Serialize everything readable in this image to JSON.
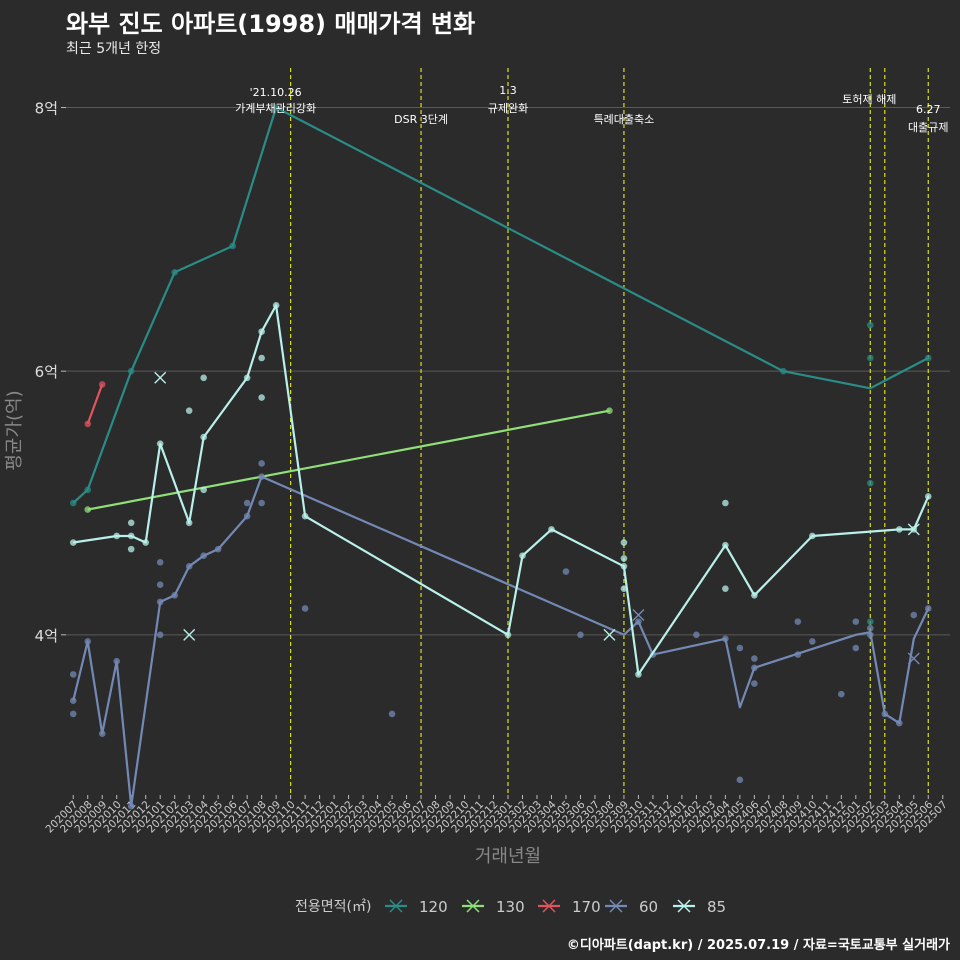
{
  "chart_data": {
    "type": "line",
    "title": "와부 진도 아파트(1998) 매매가격 변화",
    "subtitle": "최근 5개년 한정",
    "xlabel": "거래년월",
    "ylabel": "평균가(억)",
    "caption": "©디아파트(dapt.kr) / 2025.07.19 / 자료=국토교통부 실거래가",
    "legend_title": "전용면적(㎡)",
    "legend_position": "bottom",
    "grid": true,
    "ylim": [
      2.8,
      8.3
    ],
    "y_ticks": [
      4,
      6,
      8
    ],
    "y_tick_labels": [
      "4억",
      "6억",
      "8억"
    ],
    "categories": [
      "202007",
      "202008",
      "202009",
      "202010",
      "202011",
      "202012",
      "202101",
      "202102",
      "202103",
      "202104",
      "202105",
      "202106",
      "202107",
      "202108",
      "202109",
      "202110",
      "202111",
      "202112",
      "202201",
      "202202",
      "202203",
      "202204",
      "202205",
      "202206",
      "202207",
      "202208",
      "202209",
      "202210",
      "202211",
      "202212",
      "202301",
      "202302",
      "202303",
      "202304",
      "202305",
      "202306",
      "202307",
      "202308",
      "202309",
      "202310",
      "202311",
      "202312",
      "202401",
      "202402",
      "202403",
      "202404",
      "202405",
      "202406",
      "202407",
      "202408",
      "202409",
      "202410",
      "202411",
      "202412",
      "202501",
      "202502",
      "202503",
      "202504",
      "202505",
      "202506",
      "202507"
    ],
    "series": [
      {
        "name": "120",
        "color": "#2a8c87",
        "line": [
          [
            "202007",
            5.0
          ],
          [
            "202008",
            5.1
          ],
          [
            "202011",
            6.0
          ],
          [
            "202102",
            6.75
          ],
          [
            "202106",
            6.95
          ],
          [
            "202109",
            8.0
          ],
          [
            "202408",
            6.0
          ],
          [
            "202502",
            5.87
          ],
          [
            "202506",
            6.1
          ]
        ],
        "points": [
          [
            "202007",
            5.0
          ],
          [
            "202008",
            5.1
          ],
          [
            "202011",
            6.0
          ],
          [
            "202102",
            6.75
          ],
          [
            "202106",
            6.95
          ],
          [
            "202109",
            8.0
          ],
          [
            "202408",
            6.0
          ],
          [
            "202502",
            6.35
          ],
          [
            "202502",
            6.1
          ],
          [
            "202502",
            5.15
          ],
          [
            "202502",
            4.1
          ],
          [
            "202506",
            6.1
          ]
        ],
        "x_marks": []
      },
      {
        "name": "130",
        "color": "#90e07a",
        "line": [
          [
            "202008",
            4.95
          ],
          [
            "202308",
            5.7
          ]
        ],
        "points": [
          [
            "202008",
            4.95
          ],
          [
            "202308",
            5.7
          ]
        ],
        "x_marks": []
      },
      {
        "name": "170",
        "color": "#e0545d",
        "line": [
          [
            "202008",
            5.6
          ],
          [
            "202009",
            5.9
          ]
        ],
        "points": [
          [
            "202008",
            5.6
          ],
          [
            "202009",
            5.9
          ]
        ],
        "x_marks": []
      },
      {
        "name": "60",
        "color": "#7389b5",
        "line": [
          [
            "202007",
            3.5
          ],
          [
            "202008",
            3.95
          ],
          [
            "202009",
            3.25
          ],
          [
            "202010",
            3.8
          ],
          [
            "202011",
            2.7
          ],
          [
            "202101",
            4.25
          ],
          [
            "202102",
            4.3
          ],
          [
            "202103",
            4.52
          ],
          [
            "202104",
            4.6
          ],
          [
            "202105",
            4.65
          ],
          [
            "202107",
            4.9
          ],
          [
            "202108",
            5.2
          ],
          [
            "202309",
            4.0
          ],
          [
            "202310",
            4.1
          ],
          [
            "202311",
            3.85
          ],
          [
            "202404",
            3.97
          ],
          [
            "202405",
            3.45
          ],
          [
            "202406",
            3.75
          ],
          [
            "202501",
            4.0
          ],
          [
            "202502",
            4.02
          ],
          [
            "202503",
            3.4
          ],
          [
            "202504",
            3.33
          ],
          [
            "202505",
            3.97
          ],
          [
            "202506",
            4.2
          ]
        ],
        "points": [
          [
            "202007",
            3.5
          ],
          [
            "202007",
            3.7
          ],
          [
            "202007",
            3.4
          ],
          [
            "202008",
            3.95
          ],
          [
            "202009",
            3.25
          ],
          [
            "202010",
            3.8
          ],
          [
            "202011",
            2.7
          ],
          [
            "202101",
            4.0
          ],
          [
            "202101",
            4.25
          ],
          [
            "202101",
            4.38
          ],
          [
            "202101",
            4.55
          ],
          [
            "202102",
            4.3
          ],
          [
            "202103",
            4.52
          ],
          [
            "202104",
            4.6
          ],
          [
            "202105",
            4.65
          ],
          [
            "202107",
            4.9
          ],
          [
            "202107",
            5.0
          ],
          [
            "202108",
            5.2
          ],
          [
            "202108",
            5.3
          ],
          [
            "202108",
            5.0
          ],
          [
            "202111",
            4.2
          ],
          [
            "202205",
            3.4
          ],
          [
            "202305",
            4.48
          ],
          [
            "202306",
            4.0
          ],
          [
            "202310",
            4.1
          ],
          [
            "202311",
            3.85
          ],
          [
            "202402",
            4.0
          ],
          [
            "202404",
            3.97
          ],
          [
            "202405",
            3.9
          ],
          [
            "202405",
            2.9
          ],
          [
            "202406",
            3.75
          ],
          [
            "202406",
            3.82
          ],
          [
            "202406",
            3.63
          ],
          [
            "202409",
            3.85
          ],
          [
            "202409",
            4.1
          ],
          [
            "202410",
            3.95
          ],
          [
            "202412",
            3.55
          ],
          [
            "202501",
            4.1
          ],
          [
            "202501",
            3.9
          ],
          [
            "202502",
            4.0
          ],
          [
            "202502",
            4.05
          ],
          [
            "202503",
            3.4
          ],
          [
            "202504",
            3.33
          ],
          [
            "202505",
            4.15
          ],
          [
            "202506",
            4.2
          ]
        ],
        "x_marks": [
          [
            "202310",
            4.15
          ],
          [
            "202505",
            3.82
          ]
        ]
      },
      {
        "name": "85",
        "color": "#b8f0ea",
        "line": [
          [
            "202007",
            4.7
          ],
          [
            "202010",
            4.75
          ],
          [
            "202011",
            4.75
          ],
          [
            "202012",
            4.7
          ],
          [
            "202101",
            5.45
          ],
          [
            "202103",
            4.85
          ],
          [
            "202104",
            5.5
          ],
          [
            "202107",
            5.95
          ],
          [
            "202108",
            6.3
          ],
          [
            "202109",
            6.5
          ],
          [
            "202111",
            4.9
          ],
          [
            "202301",
            4.0
          ],
          [
            "202302",
            4.6
          ],
          [
            "202304",
            4.8
          ],
          [
            "202309",
            4.52
          ],
          [
            "202310",
            3.7
          ],
          [
            "202404",
            4.68
          ],
          [
            "202406",
            4.3
          ],
          [
            "202410",
            4.75
          ],
          [
            "202504",
            4.8
          ],
          [
            "202505",
            4.8
          ],
          [
            "202506",
            5.05
          ]
        ],
        "points": [
          [
            "202007",
            4.7
          ],
          [
            "202010",
            4.75
          ],
          [
            "202011",
            4.75
          ],
          [
            "202011",
            4.85
          ],
          [
            "202011",
            4.65
          ],
          [
            "202012",
            4.7
          ],
          [
            "202101",
            5.45
          ],
          [
            "202103",
            5.7
          ],
          [
            "202103",
            4.85
          ],
          [
            "202104",
            5.95
          ],
          [
            "202104",
            5.1
          ],
          [
            "202104",
            5.5
          ],
          [
            "202107",
            5.95
          ],
          [
            "202108",
            6.1
          ],
          [
            "202108",
            5.8
          ],
          [
            "202108",
            6.3
          ],
          [
            "202109",
            6.5
          ],
          [
            "202111",
            4.9
          ],
          [
            "202301",
            4.0
          ],
          [
            "202302",
            4.6
          ],
          [
            "202304",
            4.8
          ],
          [
            "202309",
            4.52
          ],
          [
            "202309",
            4.58
          ],
          [
            "202309",
            4.7
          ],
          [
            "202309",
            4.35
          ],
          [
            "202310",
            3.7
          ],
          [
            "202404",
            4.68
          ],
          [
            "202404",
            5.0
          ],
          [
            "202404",
            4.35
          ],
          [
            "202406",
            4.3
          ],
          [
            "202410",
            4.75
          ],
          [
            "202504",
            4.8
          ],
          [
            "202505",
            4.8
          ],
          [
            "202506",
            5.05
          ]
        ],
        "x_marks": [
          [
            "202101",
            5.95
          ],
          [
            "202103",
            4.0
          ],
          [
            "202308",
            4.0
          ],
          [
            "202505",
            4.8
          ]
        ]
      }
    ],
    "events": [
      {
        "x": "202110",
        "label": "'21.10.26\n가계부채관리강화"
      },
      {
        "x": "202207",
        "label": "DSR 3단계"
      },
      {
        "x": "202301",
        "label": "1.3\n규제완화"
      },
      {
        "x": "202309",
        "label": "특례대출축소"
      },
      {
        "x": "202502",
        "label": "토허제 해제"
      },
      {
        "x": "202503",
        "label": ""
      },
      {
        "x": "202506",
        "label": "6.27\n대출규제"
      }
    ]
  }
}
